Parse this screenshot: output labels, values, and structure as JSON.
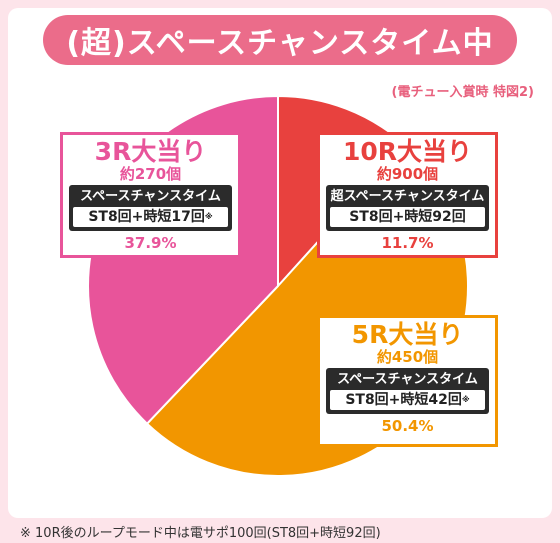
{
  "title": "(超)スペースチャンスタイム中",
  "subtitle": "(電チュー入賞時 特図2)",
  "colors": {
    "background": "#fde4ea",
    "title_bar": "#eb6c8a",
    "r10": "#e8413e",
    "r5": "#f29600",
    "r3": "#e8549a"
  },
  "chart_data": {
    "type": "pie",
    "slices": [
      {
        "label": "10R大当り",
        "count": "約900個",
        "mode": "超スペースチャンスタイム",
        "st": "ST8回+時短92回",
        "st_mark": "",
        "value": 11.7,
        "percent": "11.7%",
        "color": "#e8413e"
      },
      {
        "label": "5R大当り",
        "count": "約450個",
        "mode": "スペースチャンスタイム",
        "st": "ST8回+時短42回",
        "st_mark": "※",
        "value": 50.4,
        "percent": "50.4%",
        "color": "#f29600"
      },
      {
        "label": "3R大当り",
        "count": "約270個",
        "mode": "スペースチャンスタイム",
        "st": "ST8回+時短17回",
        "st_mark": "※",
        "value": 37.9,
        "percent": "37.9%",
        "color": "#e8549a"
      }
    ]
  },
  "footnote": "※ 10R後のループモード中は電サポ100回(ST8回+時短92回)"
}
